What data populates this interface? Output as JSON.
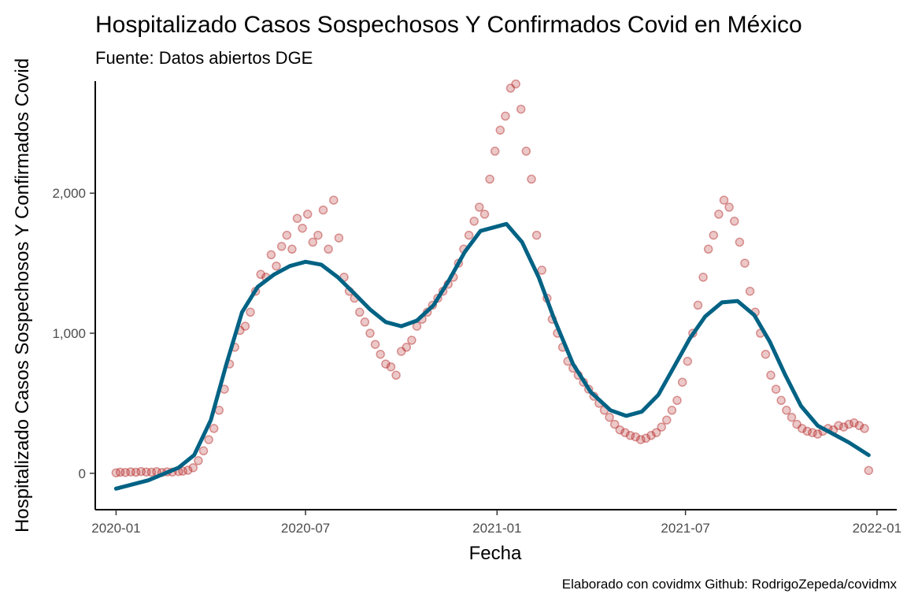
{
  "chart_data": {
    "type": "scatter",
    "title": "Hospitalizado Casos Sospechosos Y Confirmados Covid en México",
    "subtitle": "Fuente: Datos abiertos DGE",
    "xlabel": "Fecha",
    "ylabel": "Hospitalizado Casos Sospechosos Y Confirmados Covid",
    "caption": "Elaborado con covidmx Github: RodrigoZepeda/covidmx",
    "x_range": [
      "2019-12-12",
      "2022-01-20"
    ],
    "ylim": [
      -260,
      2800
    ],
    "x_ticks": [
      {
        "date": "2020-01-01",
        "label": "2020-01"
      },
      {
        "date": "2020-07-01",
        "label": "2020-07"
      },
      {
        "date": "2021-01-01",
        "label": "2021-01"
      },
      {
        "date": "2021-07-01",
        "label": "2021-07"
      },
      {
        "date": "2022-01-01",
        "label": "2022-01"
      }
    ],
    "y_ticks": [
      {
        "value": 0,
        "label": "0"
      },
      {
        "value": 1000,
        "label": "1,000"
      },
      {
        "value": 2000,
        "label": "2,000"
      }
    ],
    "grid": false,
    "legend": "none",
    "points": [
      [
        "2020-01-01",
        3
      ],
      [
        "2020-01-05",
        8
      ],
      [
        "2020-01-10",
        6
      ],
      [
        "2020-01-15",
        10
      ],
      [
        "2020-01-20",
        7
      ],
      [
        "2020-01-25",
        12
      ],
      [
        "2020-01-30",
        9
      ],
      [
        "2020-02-04",
        8
      ],
      [
        "2020-02-09",
        11
      ],
      [
        "2020-02-14",
        6
      ],
      [
        "2020-02-19",
        10
      ],
      [
        "2020-02-24",
        9
      ],
      [
        "2020-03-01",
        12
      ],
      [
        "2020-03-05",
        15
      ],
      [
        "2020-03-10",
        22
      ],
      [
        "2020-03-15",
        40
      ],
      [
        "2020-03-20",
        90
      ],
      [
        "2020-03-25",
        160
      ],
      [
        "2020-03-30",
        240
      ],
      [
        "2020-04-04",
        320
      ],
      [
        "2020-04-09",
        450
      ],
      [
        "2020-04-14",
        600
      ],
      [
        "2020-04-19",
        780
      ],
      [
        "2020-04-24",
        900
      ],
      [
        "2020-04-29",
        1020
      ],
      [
        "2020-05-04",
        1050
      ],
      [
        "2020-05-09",
        1150
      ],
      [
        "2020-05-14",
        1300
      ],
      [
        "2020-05-19",
        1420
      ],
      [
        "2020-05-24",
        1400
      ],
      [
        "2020-05-29",
        1560
      ],
      [
        "2020-06-03",
        1480
      ],
      [
        "2020-06-08",
        1620
      ],
      [
        "2020-06-13",
        1700
      ],
      [
        "2020-06-18",
        1600
      ],
      [
        "2020-06-23",
        1820
      ],
      [
        "2020-06-28",
        1750
      ],
      [
        "2020-07-03",
        1850
      ],
      [
        "2020-07-08",
        1650
      ],
      [
        "2020-07-13",
        1700
      ],
      [
        "2020-07-18",
        1880
      ],
      [
        "2020-07-23",
        1600
      ],
      [
        "2020-07-28",
        1950
      ],
      [
        "2020-08-02",
        1680
      ],
      [
        "2020-08-07",
        1400
      ],
      [
        "2020-08-12",
        1300
      ],
      [
        "2020-08-17",
        1250
      ],
      [
        "2020-08-22",
        1150
      ],
      [
        "2020-08-27",
        1080
      ],
      [
        "2020-09-01",
        1000
      ],
      [
        "2020-09-06",
        920
      ],
      [
        "2020-09-11",
        850
      ],
      [
        "2020-09-16",
        780
      ],
      [
        "2020-09-21",
        760
      ],
      [
        "2020-09-26",
        700
      ],
      [
        "2020-10-01",
        870
      ],
      [
        "2020-10-06",
        900
      ],
      [
        "2020-10-11",
        950
      ],
      [
        "2020-10-16",
        1050
      ],
      [
        "2020-10-21",
        1100
      ],
      [
        "2020-10-26",
        1150
      ],
      [
        "2020-10-31",
        1200
      ],
      [
        "2020-11-05",
        1250
      ],
      [
        "2020-11-10",
        1300
      ],
      [
        "2020-11-15",
        1350
      ],
      [
        "2020-11-20",
        1400
      ],
      [
        "2020-11-25",
        1500
      ],
      [
        "2020-11-30",
        1600
      ],
      [
        "2020-12-05",
        1700
      ],
      [
        "2020-12-10",
        1800
      ],
      [
        "2020-12-15",
        1900
      ],
      [
        "2020-12-20",
        1850
      ],
      [
        "2020-12-25",
        2100
      ],
      [
        "2020-12-30",
        2300
      ],
      [
        "2021-01-04",
        2450
      ],
      [
        "2021-01-09",
        2550
      ],
      [
        "2021-01-14",
        2750
      ],
      [
        "2021-01-19",
        2780
      ],
      [
        "2021-01-24",
        2600
      ],
      [
        "2021-01-29",
        2300
      ],
      [
        "2021-02-03",
        2100
      ],
      [
        "2021-02-08",
        1700
      ],
      [
        "2021-02-13",
        1450
      ],
      [
        "2021-02-18",
        1250
      ],
      [
        "2021-02-23",
        1100
      ],
      [
        "2021-02-28",
        1000
      ],
      [
        "2021-03-05",
        900
      ],
      [
        "2021-03-10",
        800
      ],
      [
        "2021-03-15",
        750
      ],
      [
        "2021-03-20",
        700
      ],
      [
        "2021-03-25",
        650
      ],
      [
        "2021-03-30",
        600
      ],
      [
        "2021-04-04",
        550
      ],
      [
        "2021-04-09",
        500
      ],
      [
        "2021-04-14",
        450
      ],
      [
        "2021-04-19",
        400
      ],
      [
        "2021-04-24",
        350
      ],
      [
        "2021-04-29",
        310
      ],
      [
        "2021-05-04",
        290
      ],
      [
        "2021-05-09",
        270
      ],
      [
        "2021-05-14",
        260
      ],
      [
        "2021-05-19",
        240
      ],
      [
        "2021-05-24",
        250
      ],
      [
        "2021-05-29",
        270
      ],
      [
        "2021-06-03",
        290
      ],
      [
        "2021-06-08",
        330
      ],
      [
        "2021-06-13",
        380
      ],
      [
        "2021-06-18",
        450
      ],
      [
        "2021-06-23",
        520
      ],
      [
        "2021-06-28",
        650
      ],
      [
        "2021-07-03",
        800
      ],
      [
        "2021-07-08",
        1000
      ],
      [
        "2021-07-13",
        1200
      ],
      [
        "2021-07-18",
        1400
      ],
      [
        "2021-07-23",
        1600
      ],
      [
        "2021-07-28",
        1700
      ],
      [
        "2021-08-02",
        1850
      ],
      [
        "2021-08-07",
        1950
      ],
      [
        "2021-08-12",
        1900
      ],
      [
        "2021-08-17",
        1800
      ],
      [
        "2021-08-22",
        1650
      ],
      [
        "2021-08-27",
        1500
      ],
      [
        "2021-09-01",
        1300
      ],
      [
        "2021-09-06",
        1150
      ],
      [
        "2021-09-11",
        1000
      ],
      [
        "2021-09-16",
        850
      ],
      [
        "2021-09-21",
        700
      ],
      [
        "2021-09-26",
        600
      ],
      [
        "2021-10-01",
        520
      ],
      [
        "2021-10-06",
        450
      ],
      [
        "2021-10-11",
        400
      ],
      [
        "2021-10-16",
        350
      ],
      [
        "2021-10-21",
        320
      ],
      [
        "2021-10-26",
        300
      ],
      [
        "2021-10-31",
        290
      ],
      [
        "2021-11-05",
        280
      ],
      [
        "2021-11-10",
        300
      ],
      [
        "2021-11-15",
        320
      ],
      [
        "2021-11-20",
        310
      ],
      [
        "2021-11-25",
        340
      ],
      [
        "2021-11-30",
        330
      ],
      [
        "2021-12-05",
        350
      ],
      [
        "2021-12-10",
        360
      ],
      [
        "2021-12-15",
        340
      ],
      [
        "2021-12-20",
        320
      ],
      [
        "2021-12-24",
        20
      ]
    ],
    "series": [
      {
        "type": "smooth-line",
        "color": "#006284",
        "values": [
          [
            "2020-01-01",
            -110
          ],
          [
            "2020-02-01",
            -50
          ],
          [
            "2020-03-01",
            40
          ],
          [
            "2020-03-16",
            130
          ],
          [
            "2020-04-01",
            380
          ],
          [
            "2020-04-16",
            780
          ],
          [
            "2020-05-01",
            1150
          ],
          [
            "2020-05-16",
            1330
          ],
          [
            "2020-06-01",
            1420
          ],
          [
            "2020-06-16",
            1480
          ],
          [
            "2020-07-01",
            1510
          ],
          [
            "2020-07-16",
            1490
          ],
          [
            "2020-08-01",
            1400
          ],
          [
            "2020-08-16",
            1290
          ],
          [
            "2020-09-01",
            1170
          ],
          [
            "2020-09-16",
            1080
          ],
          [
            "2020-10-01",
            1050
          ],
          [
            "2020-10-16",
            1090
          ],
          [
            "2020-11-01",
            1200
          ],
          [
            "2020-11-16",
            1380
          ],
          [
            "2020-12-01",
            1580
          ],
          [
            "2020-12-16",
            1730
          ],
          [
            "2021-01-10",
            1780
          ],
          [
            "2021-01-25",
            1650
          ],
          [
            "2021-02-10",
            1400
          ],
          [
            "2021-02-25",
            1100
          ],
          [
            "2021-03-15",
            780
          ],
          [
            "2021-04-01",
            580
          ],
          [
            "2021-04-20",
            450
          ],
          [
            "2021-05-05",
            410
          ],
          [
            "2021-05-20",
            440
          ],
          [
            "2021-06-05",
            560
          ],
          [
            "2021-06-20",
            760
          ],
          [
            "2021-07-05",
            960
          ],
          [
            "2021-07-20",
            1120
          ],
          [
            "2021-08-05",
            1220
          ],
          [
            "2021-08-20",
            1230
          ],
          [
            "2021-09-05",
            1130
          ],
          [
            "2021-09-20",
            940
          ],
          [
            "2021-10-05",
            700
          ],
          [
            "2021-10-20",
            480
          ],
          [
            "2021-11-05",
            340
          ],
          [
            "2021-11-20",
            280
          ],
          [
            "2021-12-05",
            220
          ],
          [
            "2021-12-24",
            130
          ]
        ]
      }
    ]
  }
}
